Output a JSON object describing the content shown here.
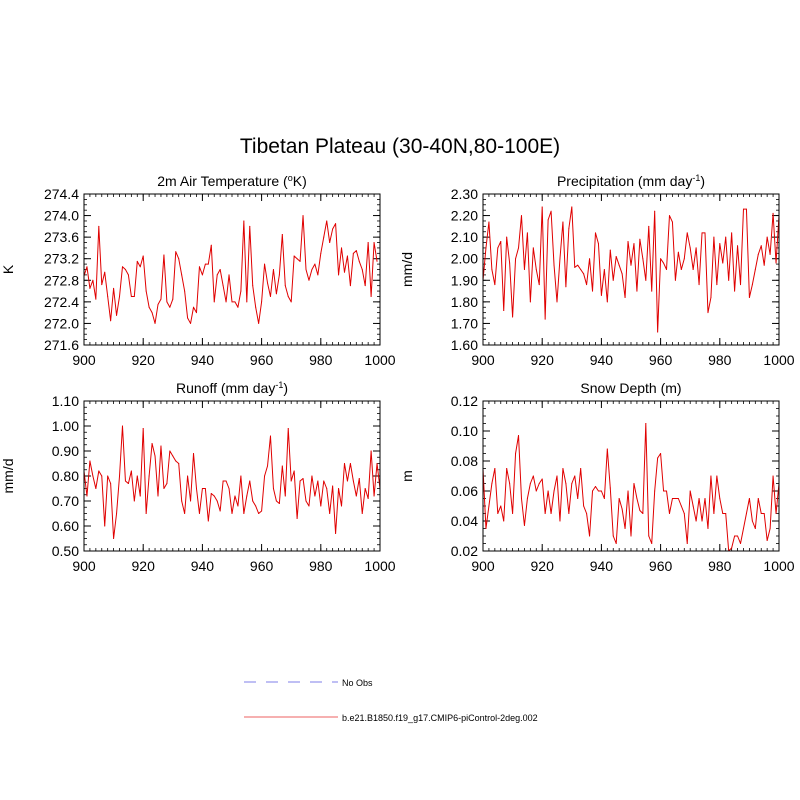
{
  "figure": {
    "title": "Tibetan Plateau (30-40N,80-100E)"
  },
  "legend": {
    "entries": [
      {
        "label": "No Obs",
        "color": "#9999ee",
        "style": "dashed"
      },
      {
        "label": "b.e21.B1850.f19_g17.CMIP6-piControl-2deg.002",
        "color": "#f08080",
        "style": "solid"
      }
    ]
  },
  "chart_data": [
    {
      "type": "line",
      "title": "2m Air Temperature (oK)",
      "title_parts": {
        "base": "2m Air Temperature (",
        "sup": "o",
        "tail": "K)"
      },
      "xlabel": "",
      "ylabel": "K",
      "xlim": [
        900,
        1000
      ],
      "ylim": [
        271.6,
        274.4
      ],
      "xticks": [
        900,
        920,
        940,
        960,
        980,
        1000
      ],
      "yticks": [
        "271.6",
        "272.0",
        "272.4",
        "272.8",
        "273.2",
        "273.6",
        "274.0",
        "274.4"
      ],
      "series": [
        {
          "name": "b.e21.B1850.f19_g17.CMIP6-piControl-2deg.002",
          "color": "#e00000",
          "x_start": 900,
          "values": [
            272.88,
            273.05,
            272.65,
            272.8,
            272.45,
            273.8,
            272.72,
            272.95,
            272.5,
            272.05,
            272.65,
            272.15,
            272.5,
            273.05,
            273.0,
            272.9,
            272.5,
            272.5,
            273.15,
            273.05,
            273.25,
            272.6,
            272.3,
            272.2,
            272.0,
            272.35,
            272.45,
            273.27,
            272.4,
            272.3,
            272.45,
            273.33,
            273.2,
            272.9,
            272.6,
            272.1,
            272.0,
            272.3,
            272.2,
            273.05,
            272.9,
            273.1,
            273.1,
            273.45,
            272.4,
            272.9,
            273.0,
            272.7,
            272.4,
            272.9,
            272.4,
            272.4,
            272.3,
            272.6,
            273.9,
            272.4,
            273.8,
            272.7,
            272.3,
            272.0,
            272.4,
            273.1,
            272.75,
            272.5,
            273.0,
            272.55,
            272.9,
            273.65,
            272.7,
            272.5,
            272.4,
            273.25,
            273.2,
            273.15,
            274.0,
            273.0,
            272.8,
            273.0,
            273.1,
            272.9,
            273.3,
            273.6,
            273.9,
            273.5,
            273.75,
            273.85,
            272.9,
            273.4,
            272.95,
            273.25,
            272.7,
            273.3,
            273.35,
            273.15,
            273.0,
            272.7,
            273.5,
            272.5,
            273.5,
            273.15
          ]
        }
      ]
    },
    {
      "type": "line",
      "title": "Precipitation (mm day-1)",
      "title_parts": {
        "base": "Precipitation (mm day",
        "sup": "-1",
        "tail": ")"
      },
      "xlabel": "",
      "ylabel": "mm/d",
      "xlim": [
        900,
        1000
      ],
      "ylim": [
        1.6,
        2.3
      ],
      "xticks": [
        900,
        920,
        940,
        960,
        980,
        1000
      ],
      "yticks": [
        "1.60",
        "1.70",
        "1.80",
        "1.90",
        "2.00",
        "2.10",
        "2.20",
        "2.30"
      ],
      "series": [
        {
          "name": "b.e21.B1850.f19_g17.CMIP6-piControl-2deg.002",
          "color": "#e00000",
          "x_start": 900,
          "values": [
            1.9,
            2.05,
            2.17,
            1.95,
            1.88,
            2.05,
            2.08,
            1.76,
            2.1,
            1.98,
            1.73,
            2.0,
            2.05,
            2.2,
            1.95,
            2.12,
            1.8,
            2.05,
            1.95,
            1.88,
            2.24,
            1.72,
            2.18,
            2.22,
            1.97,
            1.8,
            2.0,
            2.17,
            1.87,
            2.14,
            2.24,
            1.96,
            1.97,
            1.95,
            1.93,
            1.88,
            2.0,
            1.85,
            2.12,
            2.07,
            1.83,
            1.95,
            1.8,
            2.04,
            1.9,
            2.01,
            1.97,
            1.93,
            1.82,
            2.08,
            1.97,
            2.07,
            1.85,
            2.09,
            2.0,
            1.9,
            2.15,
            1.85,
            2.22,
            1.66,
            2.0,
            1.98,
            1.95,
            2.2,
            2.17,
            1.9,
            2.03,
            1.95,
            2.0,
            2.12,
            2.05,
            1.95,
            2.05,
            1.88,
            2.12,
            2.12,
            1.75,
            1.82,
            2.1,
            1.88,
            2.07,
            1.98,
            2.1,
            1.9,
            2.12,
            1.85,
            2.06,
            1.88,
            2.23,
            2.23,
            1.82,
            1.88,
            1.95,
            2.02,
            2.06,
            1.97,
            2.1,
            2.02,
            2.21,
            1.98,
            2.2
          ]
        }
      ]
    },
    {
      "type": "line",
      "title": "Runoff (mm day-1)",
      "title_parts": {
        "base": "Runoff (mm day",
        "sup": "-1",
        "tail": ")"
      },
      "xlabel": "",
      "ylabel": "mm/d",
      "xlim": [
        900,
        1000
      ],
      "ylim": [
        0.5,
        1.1
      ],
      "xticks": [
        900,
        920,
        940,
        960,
        980,
        1000
      ],
      "yticks": [
        "0.50",
        "0.60",
        "0.70",
        "0.80",
        "0.90",
        "1.00",
        "1.10"
      ],
      "series": [
        {
          "name": "b.e21.B1850.f19_g17.CMIP6-piControl-2deg.002",
          "color": "#e00000",
          "x_start": 900,
          "values": [
            0.82,
            0.72,
            0.86,
            0.8,
            0.75,
            0.82,
            0.8,
            0.6,
            0.8,
            0.77,
            0.55,
            0.65,
            0.8,
            1.0,
            0.78,
            0.77,
            0.82,
            0.7,
            0.8,
            0.72,
            0.99,
            0.65,
            0.8,
            0.93,
            0.88,
            0.72,
            0.92,
            0.75,
            0.77,
            0.9,
            0.88,
            0.86,
            0.85,
            0.7,
            0.65,
            0.8,
            0.7,
            0.89,
            0.75,
            0.65,
            0.75,
            0.75,
            0.62,
            0.73,
            0.72,
            0.7,
            0.66,
            0.78,
            0.78,
            0.75,
            0.65,
            0.72,
            0.68,
            0.8,
            0.65,
            0.72,
            0.78,
            0.7,
            0.68,
            0.65,
            0.66,
            0.8,
            0.84,
            0.96,
            0.75,
            0.7,
            0.69,
            0.84,
            0.72,
            0.99,
            0.78,
            0.82,
            0.63,
            0.78,
            0.79,
            0.7,
            0.68,
            0.8,
            0.72,
            0.78,
            0.68,
            0.78,
            0.75,
            0.65,
            0.76,
            0.57,
            0.75,
            0.68,
            0.85,
            0.78,
            0.85,
            0.78,
            0.72,
            0.79,
            0.65,
            0.75,
            0.71,
            0.9,
            0.72,
            0.85,
            0.75
          ]
        }
      ]
    },
    {
      "type": "line",
      "title": "Snow Depth (m)",
      "title_parts": {
        "base": "Snow Depth (m)",
        "sup": "",
        "tail": ""
      },
      "xlabel": "",
      "ylabel": "m",
      "xlim": [
        900,
        1000
      ],
      "ylim": [
        0.02,
        0.12
      ],
      "xticks": [
        900,
        920,
        940,
        960,
        980,
        1000
      ],
      "yticks": [
        "0.02",
        "0.04",
        "0.06",
        "0.08",
        "0.10",
        "0.12"
      ],
      "series": [
        {
          "name": "b.e21.B1850.f19_g17.CMIP6-piControl-2deg.002",
          "color": "#e00000",
          "x_start": 900,
          "values": [
            0.075,
            0.035,
            0.05,
            0.065,
            0.075,
            0.045,
            0.05,
            0.04,
            0.075,
            0.065,
            0.045,
            0.085,
            0.097,
            0.055,
            0.037,
            0.055,
            0.065,
            0.07,
            0.06,
            0.065,
            0.068,
            0.045,
            0.06,
            0.045,
            0.06,
            0.07,
            0.04,
            0.075,
            0.065,
            0.045,
            0.065,
            0.07,
            0.055,
            0.075,
            0.05,
            0.045,
            0.03,
            0.06,
            0.063,
            0.06,
            0.06,
            0.055,
            0.088,
            0.062,
            0.03,
            0.025,
            0.055,
            0.048,
            0.035,
            0.06,
            0.03,
            0.065,
            0.055,
            0.047,
            0.045,
            0.105,
            0.03,
            0.025,
            0.06,
            0.082,
            0.085,
            0.06,
            0.06,
            0.045,
            0.055,
            0.055,
            0.055,
            0.05,
            0.045,
            0.025,
            0.06,
            0.05,
            0.04,
            0.055,
            0.04,
            0.055,
            0.035,
            0.07,
            0.045,
            0.07,
            0.055,
            0.045,
            0.045,
            0.02,
            0.022,
            0.03,
            0.03,
            0.025,
            0.035,
            0.045,
            0.055,
            0.04,
            0.035,
            0.055,
            0.045,
            0.045,
            0.027,
            0.035,
            0.07,
            0.045,
            0.065
          ]
        }
      ]
    }
  ]
}
